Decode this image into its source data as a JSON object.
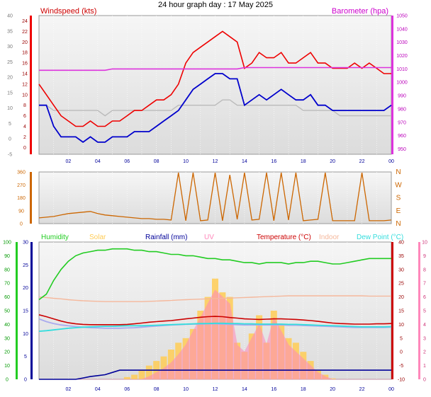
{
  "title": "24 hour graph day : 17 May 2025",
  "colors": {
    "windspeed": "#ee0000",
    "avgwind": "#0000cc",
    "barometer": "#dd33dd",
    "winddir": "#cc6600",
    "humidity": "#22cc22",
    "solar": "#ffcc55",
    "rainfall": "#000099",
    "uv": "#ff88bb",
    "temperature": "#cc0000",
    "indoor": "#f5b89c",
    "dewpoint": "#33dddd",
    "windchill": "#aaaaee",
    "grey": "#bbbbbb"
  },
  "chart_data": [
    {
      "type": "line",
      "panel": "wind",
      "title": "",
      "left_label": "Windspeed (kts)",
      "right_label": "Barometer (hpa)",
      "x_ticks": [
        "02",
        "04",
        "06",
        "08",
        "10",
        "12",
        "14",
        "16",
        "18",
        "20",
        "22",
        "00"
      ],
      "y_left_outer": {
        "ticks": [
          "-5",
          "0",
          "5",
          "10",
          "15",
          "20",
          "25",
          "30",
          "35",
          "40"
        ],
        "range": [
          -5,
          40
        ]
      },
      "y_left_inner": {
        "ticks": [
          "0",
          "2",
          "4",
          "6",
          "8",
          "10",
          "12",
          "14",
          "16",
          "18",
          "20",
          "22",
          "24"
        ],
        "range": [
          -1.3,
          25
        ]
      },
      "y_right": {
        "ticks": [
          "950",
          "960",
          "970",
          "980",
          "990",
          "1000",
          "1010",
          "1020",
          "1030",
          "1040",
          "1050"
        ],
        "range": [
          946,
          1050
        ]
      },
      "x_hours": [
        0,
        0.5,
        1,
        1.5,
        2,
        2.5,
        3,
        3.5,
        4,
        4.5,
        5,
        5.5,
        6,
        6.5,
        7,
        7.5,
        8,
        8.5,
        9,
        9.5,
        10,
        10.5,
        11,
        11.5,
        12,
        12.5,
        13,
        13.5,
        14,
        14.5,
        15,
        15.5,
        16,
        16.5,
        17,
        17.5,
        18,
        18.5,
        19,
        19.5,
        20,
        20.5,
        21,
        21.5,
        22,
        22.5,
        23,
        23.5,
        24
      ],
      "series": [
        {
          "name": "",
          "units": "kts",
          "values": [
            12,
            10,
            8,
            6,
            5,
            4,
            4,
            5,
            4,
            4,
            5,
            5,
            6,
            7,
            7,
            8,
            9,
            9,
            10,
            12,
            16,
            18,
            19,
            20,
            21,
            22,
            21,
            20,
            15,
            16,
            18,
            17,
            17,
            18,
            16,
            16,
            17,
            18,
            16,
            16,
            15,
            15,
            15,
            16,
            15,
            16,
            15,
            14,
            14
          ]
        },
        {
          "name": "",
          "units": "kts",
          "values": [
            8,
            8,
            4,
            2,
            2,
            2,
            1,
            2,
            1,
            1,
            2,
            2,
            2,
            3,
            3,
            3,
            4,
            5,
            6,
            7,
            9,
            11,
            12,
            13,
            14,
            14,
            13,
            13,
            8,
            9,
            10,
            9,
            10,
            11,
            10,
            9,
            9,
            10,
            8,
            8,
            7,
            7,
            7,
            7,
            7,
            7,
            7,
            7,
            8
          ]
        },
        {
          "name": "",
          "units": "kts",
          "values": [
            8,
            8,
            7,
            7,
            7,
            7,
            7,
            7,
            7,
            6,
            7,
            7,
            7,
            7,
            7,
            7,
            7,
            7,
            7,
            8,
            8,
            8,
            8,
            8,
            8,
            9,
            9,
            8,
            8,
            8,
            8,
            8,
            8,
            8,
            8,
            8,
            7,
            7,
            7,
            7,
            7,
            6,
            6,
            6,
            6,
            6,
            6,
            6,
            6
          ]
        },
        {
          "name": "",
          "units": "hpa",
          "values": [
            1009,
            1009,
            1009,
            1009,
            1009,
            1009,
            1009,
            1009,
            1009,
            1009,
            1010,
            1010,
            1010,
            1010,
            1010,
            1010,
            1010,
            1010,
            1010,
            1010,
            1010,
            1010,
            1010,
            1010,
            1010,
            1010,
            1010,
            1010,
            1011,
            1011,
            1011,
            1011,
            1011,
            1011,
            1011,
            1011,
            1011,
            1011,
            1011,
            1011,
            1011,
            1011,
            1011,
            1011,
            1011,
            1011,
            1011,
            1011,
            1011
          ]
        }
      ]
    },
    {
      "type": "line",
      "panel": "direction",
      "title": "",
      "y_left": {
        "ticks": [
          "0",
          "90",
          "180",
          "270",
          "360"
        ],
        "range": [
          0,
          360
        ]
      },
      "y_right": {
        "ticks": [
          "N",
          "E",
          "S",
          "W",
          "N"
        ]
      },
      "x_hours": [
        0,
        0.5,
        1,
        1.5,
        2,
        2.5,
        3,
        3.5,
        4,
        4.5,
        5,
        5.5,
        6,
        6.5,
        7,
        7.5,
        8,
        8.5,
        9,
        9.5,
        10,
        10.5,
        11,
        11.5,
        12,
        12.5,
        13,
        13.5,
        14,
        14.5,
        15,
        15.5,
        16,
        16.5,
        17,
        17.5,
        18,
        18.5,
        19,
        19.5,
        20,
        20.5,
        21,
        21.5,
        22,
        22.5,
        23,
        23.5,
        24
      ],
      "series": [
        {
          "name": "",
          "units": "deg",
          "values": [
            40,
            45,
            50,
            60,
            70,
            75,
            80,
            85,
            70,
            60,
            55,
            50,
            45,
            40,
            35,
            35,
            30,
            30,
            25,
            355,
            20,
            355,
            20,
            25,
            355,
            20,
            340,
            30,
            355,
            25,
            30,
            355,
            20,
            355,
            25,
            355,
            20,
            25,
            30,
            355,
            20,
            20,
            20,
            20,
            355,
            20,
            20,
            20,
            25
          ]
        }
      ]
    },
    {
      "type": "line",
      "panel": "climate",
      "title": "",
      "legend": [
        "Humidity",
        "Solar",
        "Rainfall (mm)",
        "UV",
        "Temperature (°C)",
        "Indoor",
        "Dew Point (°C)"
      ],
      "x_ticks": [
        "02",
        "04",
        "06",
        "08",
        "10",
        "12",
        "14",
        "16",
        "18",
        "20",
        "22",
        "00"
      ],
      "y_humidity": {
        "ticks": [
          "0",
          "10",
          "20",
          "30",
          "40",
          "50",
          "60",
          "70",
          "80",
          "90",
          "100"
        ],
        "range": [
          0,
          100
        ]
      },
      "y_rain": {
        "ticks": [
          "0",
          "5",
          "10",
          "15",
          "20",
          "25",
          "30"
        ],
        "range": [
          0,
          30
        ]
      },
      "y_temp": {
        "ticks": [
          "-10",
          "-5",
          "0",
          "5",
          "10",
          "15",
          "20",
          "25",
          "30",
          "35",
          "40"
        ],
        "range": [
          -10,
          40
        ]
      },
      "y_uv": {
        "ticks": [
          "0",
          "1",
          "2",
          "3",
          "4",
          "5",
          "6",
          "7",
          "8",
          "9",
          "10"
        ],
        "range": [
          0,
          10
        ]
      },
      "x_hours": [
        0,
        0.5,
        1,
        1.5,
        2,
        2.5,
        3,
        3.5,
        4,
        4.5,
        5,
        5.5,
        6,
        6.5,
        7,
        7.5,
        8,
        8.5,
        9,
        9.5,
        10,
        10.5,
        11,
        11.5,
        12,
        12.5,
        13,
        13.5,
        14,
        14.5,
        15,
        15.5,
        16,
        16.5,
        17,
        17.5,
        18,
        18.5,
        19,
        19.5,
        20,
        20.5,
        21,
        21.5,
        22,
        22.5,
        23,
        23.5,
        24
      ],
      "series": [
        {
          "name": "Humidity",
          "units": "%",
          "values": [
            58,
            62,
            72,
            80,
            86,
            90,
            92,
            93,
            94,
            94,
            95,
            95,
            95,
            94,
            94,
            93,
            93,
            92,
            91,
            91,
            90,
            90,
            89,
            88,
            88,
            87,
            87,
            86,
            85,
            85,
            84,
            85,
            85,
            85,
            84,
            85,
            85,
            86,
            86,
            85,
            84,
            84,
            85,
            86,
            87,
            88,
            88,
            88,
            88
          ]
        },
        {
          "name": "Indoor",
          "units": "°C",
          "values": [
            20,
            19.8,
            19.5,
            19.3,
            19,
            18.8,
            18.6,
            18.5,
            18.4,
            18.3,
            18.3,
            18.3,
            18.3,
            18.3,
            18.3,
            18.4,
            18.5,
            18.6,
            18.7,
            18.9,
            19,
            19.1,
            19.2,
            19.3,
            19.4,
            19.5,
            19.6,
            19.7,
            19.8,
            19.9,
            20,
            20.1,
            20.2,
            20.3,
            20.4,
            20.4,
            20.4,
            20.4,
            20.4,
            20.4,
            20.4,
            20.4,
            20.4,
            20.4,
            20.4,
            20.3,
            20.3,
            20.3,
            20.3
          ]
        },
        {
          "name": "Temperature (°C)",
          "units": "°C",
          "values": [
            13.5,
            12.8,
            12,
            11.2,
            10.6,
            10.2,
            10,
            9.9,
            9.9,
            9.9,
            9.9,
            9.9,
            10,
            10.2,
            10.5,
            10.8,
            11,
            11.2,
            11.4,
            11.7,
            12,
            12.3,
            12.6,
            12.8,
            12.9,
            12.8,
            12.5,
            12.3,
            12,
            11.9,
            11.8,
            11.9,
            12,
            12,
            11.9,
            11.8,
            11.6,
            11.4,
            11.1,
            10.8,
            10.5,
            10.3,
            10.2,
            10.1,
            10.1,
            10.1,
            10.2,
            10.2,
            10.3
          ]
        },
        {
          "name": "Dew Point (°C)",
          "units": "°C",
          "values": [
            7.5,
            7.7,
            8,
            8.3,
            8.6,
            8.8,
            9,
            9.1,
            9.2,
            9.3,
            9.3,
            9.4,
            9.5,
            9.5,
            9.5,
            9.6,
            9.7,
            9.8,
            9.9,
            10,
            10.1,
            10.2,
            10.3,
            10.3,
            10.4,
            10.4,
            10.3,
            10.3,
            10.2,
            10.2,
            10.1,
            10.1,
            10.1,
            10.1,
            10,
            10,
            9.9,
            9.8,
            9.7,
            9.6,
            9.5,
            9.4,
            9.3,
            9.2,
            9.1,
            9.1,
            9.1,
            9.1,
            9.2
          ]
        },
        {
          "name": "",
          "units": "°C",
          "values": [
            12,
            11,
            10.3,
            9.8,
            9.5,
            9.2,
            9,
            8.8,
            8.7,
            8.6,
            8.6,
            8.6,
            8.7,
            8.8,
            9,
            9.2,
            9.4,
            9.6,
            9.8,
            9.9,
            10,
            10.1,
            10.1,
            10.2,
            10.2,
            10.1,
            10,
            9.9,
            9.8,
            9.8,
            9.8,
            9.8,
            9.8,
            9.8,
            9.7,
            9.7,
            9.6,
            9.5,
            9.4,
            9.3,
            9.2,
            9.1,
            9,
            8.9,
            8.9,
            8.9,
            8.9,
            8.9,
            9
          ]
        },
        {
          "name": "Rainfall (mm)",
          "units": "mm",
          "values": [
            0,
            0,
            0,
            0,
            0,
            0,
            0.3,
            0.6,
            0.8,
            1,
            1.5,
            2,
            2,
            2,
            2,
            2,
            2,
            2,
            2,
            2,
            2,
            2,
            2,
            2,
            2,
            2,
            2,
            2,
            2,
            2,
            2,
            2,
            2,
            2,
            2,
            2,
            2,
            2,
            2,
            2,
            2,
            2,
            2,
            2,
            2,
            2,
            2,
            2,
            2
          ]
        },
        {
          "name": "Solar",
          "units": "W/m²",
          "values": [
            0,
            0,
            0,
            0,
            0,
            0,
            0,
            0,
            0,
            0,
            0,
            0,
            0.5,
            1,
            2,
            3,
            4,
            5,
            6.5,
            8,
            9,
            11,
            15,
            18,
            22,
            19,
            18,
            8,
            6,
            10,
            14,
            8,
            15,
            12,
            9,
            8,
            6,
            4,
            2,
            1,
            0.2,
            0,
            0,
            0,
            0,
            0,
            0,
            0,
            0
          ]
        },
        {
          "name": "UV",
          "units": "",
          "values": [
            0,
            0,
            0,
            0,
            0,
            0,
            0,
            0,
            0,
            0,
            0,
            0,
            0,
            0,
            0,
            0.2,
            0.5,
            0.8,
            1.2,
            1.8,
            2.5,
            3.5,
            4.5,
            5.5,
            6.5,
            6,
            5.5,
            2.5,
            2,
            3,
            4,
            2.5,
            4.5,
            3.5,
            2.5,
            2,
            1.5,
            1,
            0.5,
            0.2,
            0,
            0,
            0,
            0,
            0,
            0,
            0,
            0,
            0
          ]
        }
      ]
    }
  ]
}
